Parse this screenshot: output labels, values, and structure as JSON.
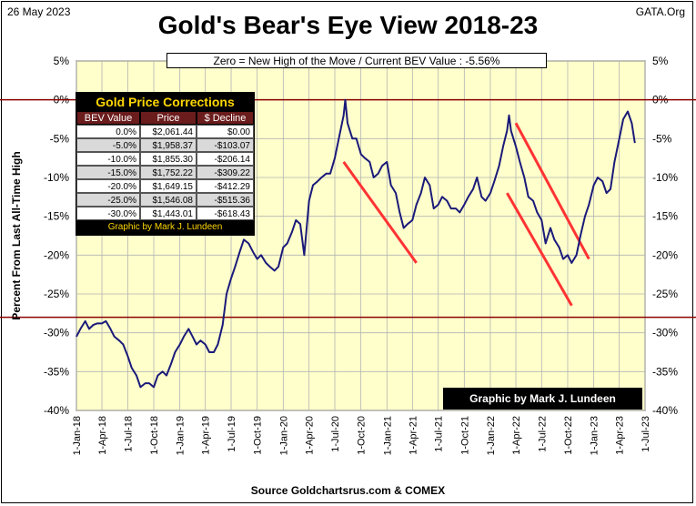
{
  "header": {
    "date": "26 May 2023",
    "source_tag": "GATA.Org",
    "title": "Gold's Bear's Eye View 2018-23",
    "subtitle": "Zero = New High of the Move / Current  BEV Value : -5.56%",
    "footer": "Source Goldchartsrus.com & COMEX",
    "credit": "Graphic by Mark J. Lundeen"
  },
  "table": {
    "title": "Gold Price Corrections",
    "columns": [
      "BEV Value",
      "Price",
      "$ Decline"
    ],
    "rows": [
      [
        "0.0%",
        "$2,061.44",
        "$0.00"
      ],
      [
        "-5.0%",
        "$1,958.37",
        "-$103.07"
      ],
      [
        "-10.0%",
        "$1,855.30",
        "-$206.14"
      ],
      [
        "-15.0%",
        "$1,752.22",
        "-$309.22"
      ],
      [
        "-20.0%",
        "$1,649.15",
        "-$412.29"
      ],
      [
        "-25.0%",
        "$1,546.08",
        "-$515.36"
      ],
      [
        "-30.0%",
        "$1,443.01",
        "-$618.43"
      ]
    ],
    "footer": "Graphic by Mark J. Lundeen"
  },
  "colors": {
    "plot_bg": "#ffffcc",
    "line": "#1a1a7a",
    "trend": "#ff3333",
    "reference": "#8b0000",
    "grid": "#b3b3b3"
  },
  "chart_data": {
    "type": "line",
    "ylabel": "Percent  From Last  All-Time  High",
    "ylim": [
      -40,
      5
    ],
    "yticks": [
      5,
      0,
      -5,
      -10,
      -15,
      -20,
      -25,
      -30,
      -35,
      -40
    ],
    "ytick_labels": [
      "5%",
      "0%",
      "-5%",
      "-10%",
      "-15%",
      "-20%",
      "-25%",
      "-30%",
      "-35%",
      "-40%"
    ],
    "xticks": [
      "1-Jan-18",
      "1-Apr-18",
      "1-Jul-18",
      "1-Oct-18",
      "1-Jan-19",
      "1-Apr-19",
      "1-Jul-19",
      "1-Oct-19",
      "1-Jan-20",
      "1-Apr-20",
      "1-Jul-20",
      "1-Oct-20",
      "1-Jan-21",
      "1-Apr-21",
      "1-Jul-21",
      "1-Oct-21",
      "1-Jan-22",
      "1-Apr-22",
      "1-Jul-22",
      "1-Oct-22",
      "1-Jan-23",
      "1-Apr-23",
      "1-Jul-23"
    ],
    "reference_lines": [
      0,
      -28
    ],
    "grid": true,
    "series": [
      {
        "dates": [
          "2018-01-01",
          "2018-01-15",
          "2018-02-01",
          "2018-02-15",
          "2018-03-01",
          "2018-03-15",
          "2018-04-01",
          "2018-04-15",
          "2018-05-01",
          "2018-05-15",
          "2018-06-01",
          "2018-06-15",
          "2018-07-01",
          "2018-07-15",
          "2018-08-01",
          "2018-08-15",
          "2018-09-01",
          "2018-09-15",
          "2018-10-01",
          "2018-10-15",
          "2018-11-01",
          "2018-11-15",
          "2018-12-01",
          "2018-12-15",
          "2019-01-01",
          "2019-01-15",
          "2019-02-01",
          "2019-02-15",
          "2019-03-01",
          "2019-03-15",
          "2019-04-01",
          "2019-04-15",
          "2019-05-01",
          "2019-05-15",
          "2019-06-01",
          "2019-06-15",
          "2019-07-01",
          "2019-07-15",
          "2019-08-01",
          "2019-08-15",
          "2019-09-01",
          "2019-09-15",
          "2019-10-01",
          "2019-10-15",
          "2019-11-01",
          "2019-11-15",
          "2019-12-01",
          "2019-12-15",
          "2020-01-01",
          "2020-01-15",
          "2020-02-01",
          "2020-02-15",
          "2020-03-01",
          "2020-03-15",
          "2020-04-01",
          "2020-04-15",
          "2020-05-01",
          "2020-05-15",
          "2020-06-01",
          "2020-06-15",
          "2020-07-01",
          "2020-07-15",
          "2020-08-01",
          "2020-08-07",
          "2020-08-15",
          "2020-09-01",
          "2020-09-15",
          "2020-10-01",
          "2020-10-15",
          "2020-11-01",
          "2020-11-15",
          "2020-12-01",
          "2020-12-15",
          "2021-01-01",
          "2021-01-15",
          "2021-02-01",
          "2021-02-15",
          "2021-03-01",
          "2021-03-15",
          "2021-04-01",
          "2021-04-15",
          "2021-05-01",
          "2021-05-15",
          "2021-06-01",
          "2021-06-15",
          "2021-07-01",
          "2021-07-15",
          "2021-08-01",
          "2021-08-15",
          "2021-09-01",
          "2021-09-15",
          "2021-10-01",
          "2021-10-15",
          "2021-11-01",
          "2021-11-15",
          "2021-12-01",
          "2021-12-15",
          "2022-01-01",
          "2022-01-15",
          "2022-02-01",
          "2022-02-15",
          "2022-03-01",
          "2022-03-08",
          "2022-03-15",
          "2022-04-01",
          "2022-04-15",
          "2022-05-01",
          "2022-05-15",
          "2022-06-01",
          "2022-06-15",
          "2022-07-01",
          "2022-07-15",
          "2022-08-01",
          "2022-08-15",
          "2022-09-01",
          "2022-09-15",
          "2022-10-01",
          "2022-10-15",
          "2022-11-01",
          "2022-11-15",
          "2022-12-01",
          "2022-12-15",
          "2023-01-01",
          "2023-01-15",
          "2023-02-01",
          "2023-02-15",
          "2023-03-01",
          "2023-03-15",
          "2023-04-01",
          "2023-04-15",
          "2023-05-01",
          "2023-05-15",
          "2023-05-26"
        ],
        "values": [
          -30.5,
          -29.5,
          -28.5,
          -29.5,
          -29,
          -28.8,
          -28.8,
          -28.5,
          -29.5,
          -30.5,
          -31,
          -31.5,
          -33,
          -34.5,
          -35.5,
          -37,
          -36.5,
          -36.5,
          -37,
          -35.5,
          -35,
          -35.5,
          -34,
          -32.5,
          -31.5,
          -30.5,
          -29.5,
          -30.5,
          -31.5,
          -31,
          -31.5,
          -32.5,
          -32.5,
          -31.5,
          -29,
          -25,
          -23,
          -21.5,
          -19.5,
          -18,
          -18.5,
          -19.5,
          -20.5,
          -20,
          -21,
          -21.5,
          -22,
          -21.5,
          -19,
          -18.5,
          -17,
          -15.5,
          -16,
          -20,
          -13,
          -11,
          -10.5,
          -10,
          -9.5,
          -9.5,
          -7.5,
          -5,
          -2,
          0,
          -3,
          -5,
          -5,
          -7,
          -7.5,
          -8,
          -10,
          -9.5,
          -8.5,
          -8,
          -11,
          -12,
          -14.5,
          -16.5,
          -16,
          -15.5,
          -13.5,
          -12,
          -10,
          -11,
          -14,
          -13.5,
          -12.5,
          -13,
          -14,
          -14,
          -14.5,
          -13.5,
          -12.5,
          -11.5,
          -10,
          -12.5,
          -13,
          -12,
          -10.5,
          -8.5,
          -6,
          -4,
          -2,
          -4,
          -6,
          -8,
          -10,
          -12.5,
          -13,
          -14.5,
          -15.5,
          -18.5,
          -16.5,
          -18,
          -19,
          -20.5,
          -20,
          -21,
          -20,
          -17.5,
          -15,
          -13.5,
          -11,
          -10,
          -10.5,
          -12,
          -11.5,
          -8,
          -5,
          -2.5,
          -1.5,
          -3,
          -5.56
        ]
      }
    ],
    "trendlines": [
      {
        "from": [
          "2020-08-01",
          -8
        ],
        "to": [
          "2021-04-15",
          -21
        ]
      },
      {
        "from": [
          "2022-03-01",
          -12
        ],
        "to": [
          "2022-10-15",
          -26.5
        ]
      },
      {
        "from": [
          "2022-04-01",
          -3
        ],
        "to": [
          "2022-12-15",
          -20.5
        ]
      }
    ]
  }
}
